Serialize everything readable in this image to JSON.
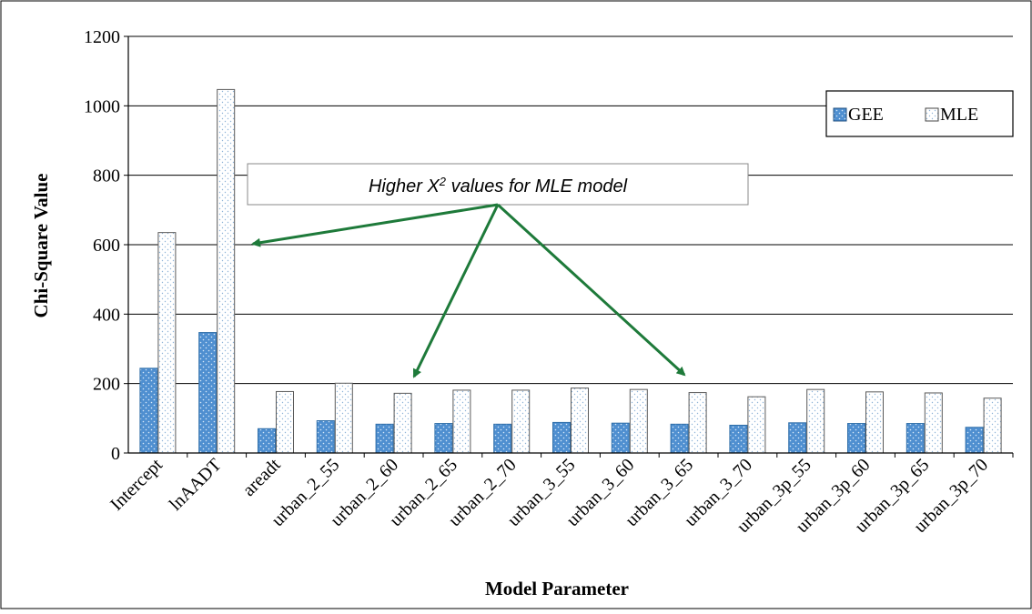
{
  "chart_data": {
    "type": "bar",
    "title": "",
    "xlabel": "Model Parameter",
    "ylabel": "Chi-Square Value",
    "ylim": [
      0,
      1200
    ],
    "yticks": [
      0,
      200,
      400,
      600,
      800,
      1000,
      1200
    ],
    "grid": true,
    "legend_position": "top-right",
    "categories": [
      "Intercept",
      "lnAADT",
      "areadt",
      "urban_2_55",
      "urban_2_60",
      "urban_2_65",
      "urban_2_70",
      "urban_3_55",
      "urban_3_60",
      "urban_3_65",
      "urban_3_70",
      "urban_3p_55",
      "urban_3p_60",
      "urban_3p_65",
      "urban_3p_70"
    ],
    "series": [
      {
        "name": "GEE",
        "color": "#4f8fd0",
        "values": [
          244,
          347,
          70,
          93,
          83,
          85,
          83,
          88,
          86,
          83,
          80,
          87,
          85,
          85,
          74
        ]
      },
      {
        "name": "MLE",
        "color": "#ffffff",
        "values": [
          635,
          1047,
          177,
          201,
          172,
          181,
          181,
          187,
          183,
          174,
          162,
          183,
          176,
          173,
          158
        ]
      }
    ],
    "annotation": {
      "text_main": "Higher X",
      "text_sup": "2",
      "text_rest": " values for MLE model",
      "arrow_color": "#1e7a3a"
    }
  }
}
